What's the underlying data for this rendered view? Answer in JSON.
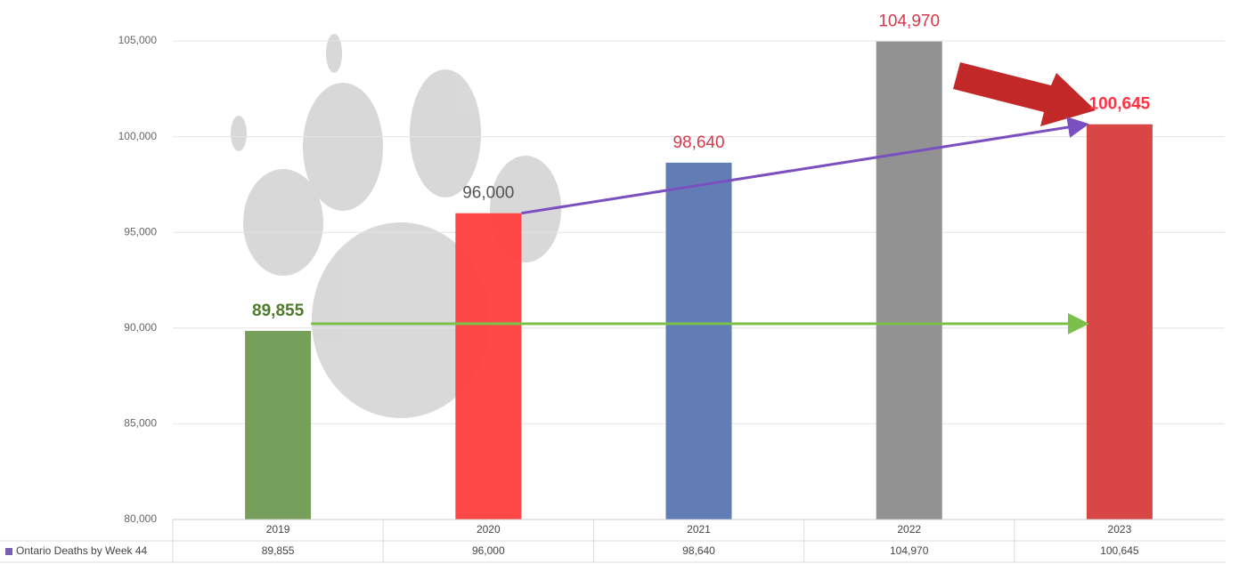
{
  "chart_data": {
    "type": "bar",
    "categories": [
      "2019",
      "2020",
      "2021",
      "2022",
      "2023"
    ],
    "series": [
      {
        "name": "Ontario Deaths by Week 44",
        "color": "#7a5fb0",
        "values": [
          89855,
          96000,
          98640,
          104970,
          100645
        ],
        "value_labels": [
          "89,855",
          "96,000",
          "98,640",
          "104,970",
          "100,645"
        ],
        "bar_colors": [
          "#6f9a52",
          "#ff3f3f",
          "#5a76b2",
          "#8c8c8c",
          "#d63c3c"
        ],
        "label_colors": [
          "#4e7a2e",
          "#555555",
          "#d6384a",
          "#d6384a",
          "#ff3344"
        ]
      }
    ],
    "ylim": [
      80000,
      105000
    ],
    "yticks": [
      {
        "value": 80000,
        "label": "80,000"
      },
      {
        "value": 85000,
        "label": "85,000"
      },
      {
        "value": 90000,
        "label": "90,000"
      },
      {
        "value": 95000,
        "label": "95,000"
      },
      {
        "value": 100000,
        "label": "100,000"
      },
      {
        "value": 105000,
        "label": "105,000"
      }
    ],
    "grid": true,
    "data_table": true
  }
}
